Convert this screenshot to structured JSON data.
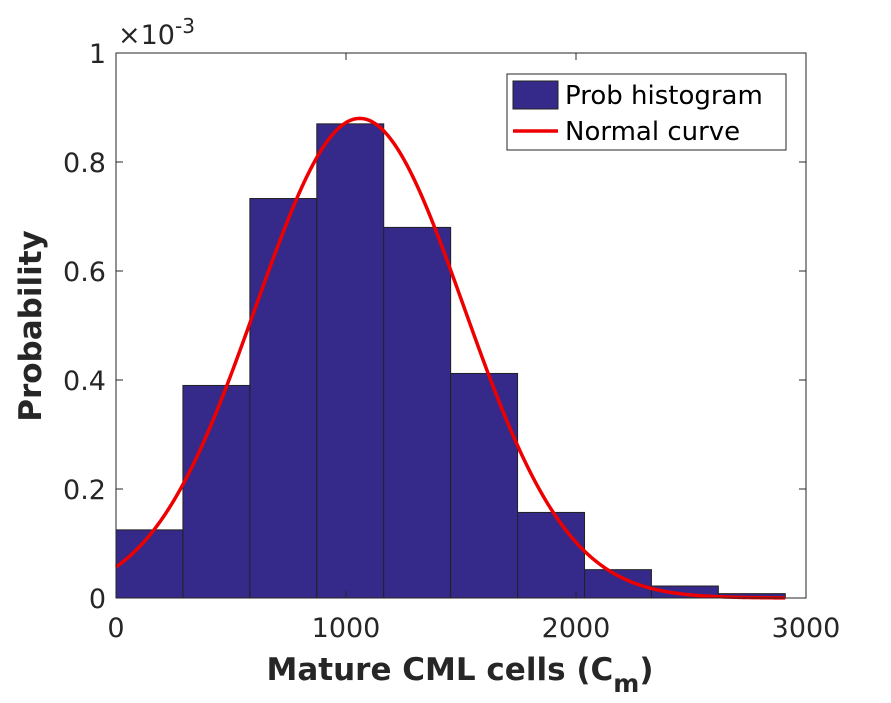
{
  "chart_data": {
    "type": "bar",
    "subtype": "histogram-with-curve",
    "bin_edges": [
      0,
      291,
      582,
      873,
      1164,
      1455,
      1746,
      2037,
      2328,
      2619,
      2910
    ],
    "values": [
      0.000125,
      0.00039,
      0.000733,
      0.00087,
      0.00068,
      0.000412,
      0.000157,
      5.2e-05,
      2.2e-05,
      8e-06
    ],
    "curve": {
      "name": "Normal curve",
      "type": "normal",
      "mean": 1060,
      "std": 453,
      "peak": 0.00088
    },
    "xlabel": "Mature CML cells (C",
    "xlabel_subscript": "m",
    "xlabel_suffix": ")",
    "ylabel": "Probability",
    "xlim": [
      0,
      3000
    ],
    "ylim": [
      0,
      0.001
    ],
    "x_ticks": [
      "0",
      "1000",
      "2000",
      "3000"
    ],
    "x_tick_values": [
      0,
      1000,
      2000,
      3000
    ],
    "y_ticks": [
      "0",
      "0.2",
      "0.4",
      "0.6",
      "0.8",
      "1"
    ],
    "y_tick_values": [
      0,
      0.0002,
      0.0004,
      0.0006,
      0.0008,
      0.001
    ],
    "y_exponent_prefix": "×10",
    "y_exponent_power": "-3",
    "legend": {
      "position": "top-right",
      "entries": [
        {
          "label": "Prob histogram",
          "color": "#35298a"
        },
        {
          "label": "Normal curve",
          "color": "#ee0000"
        }
      ]
    },
    "bar_color": "#35298a",
    "bar_edge_color": "#222222",
    "curve_color": "#ee0000",
    "grid": false
  }
}
